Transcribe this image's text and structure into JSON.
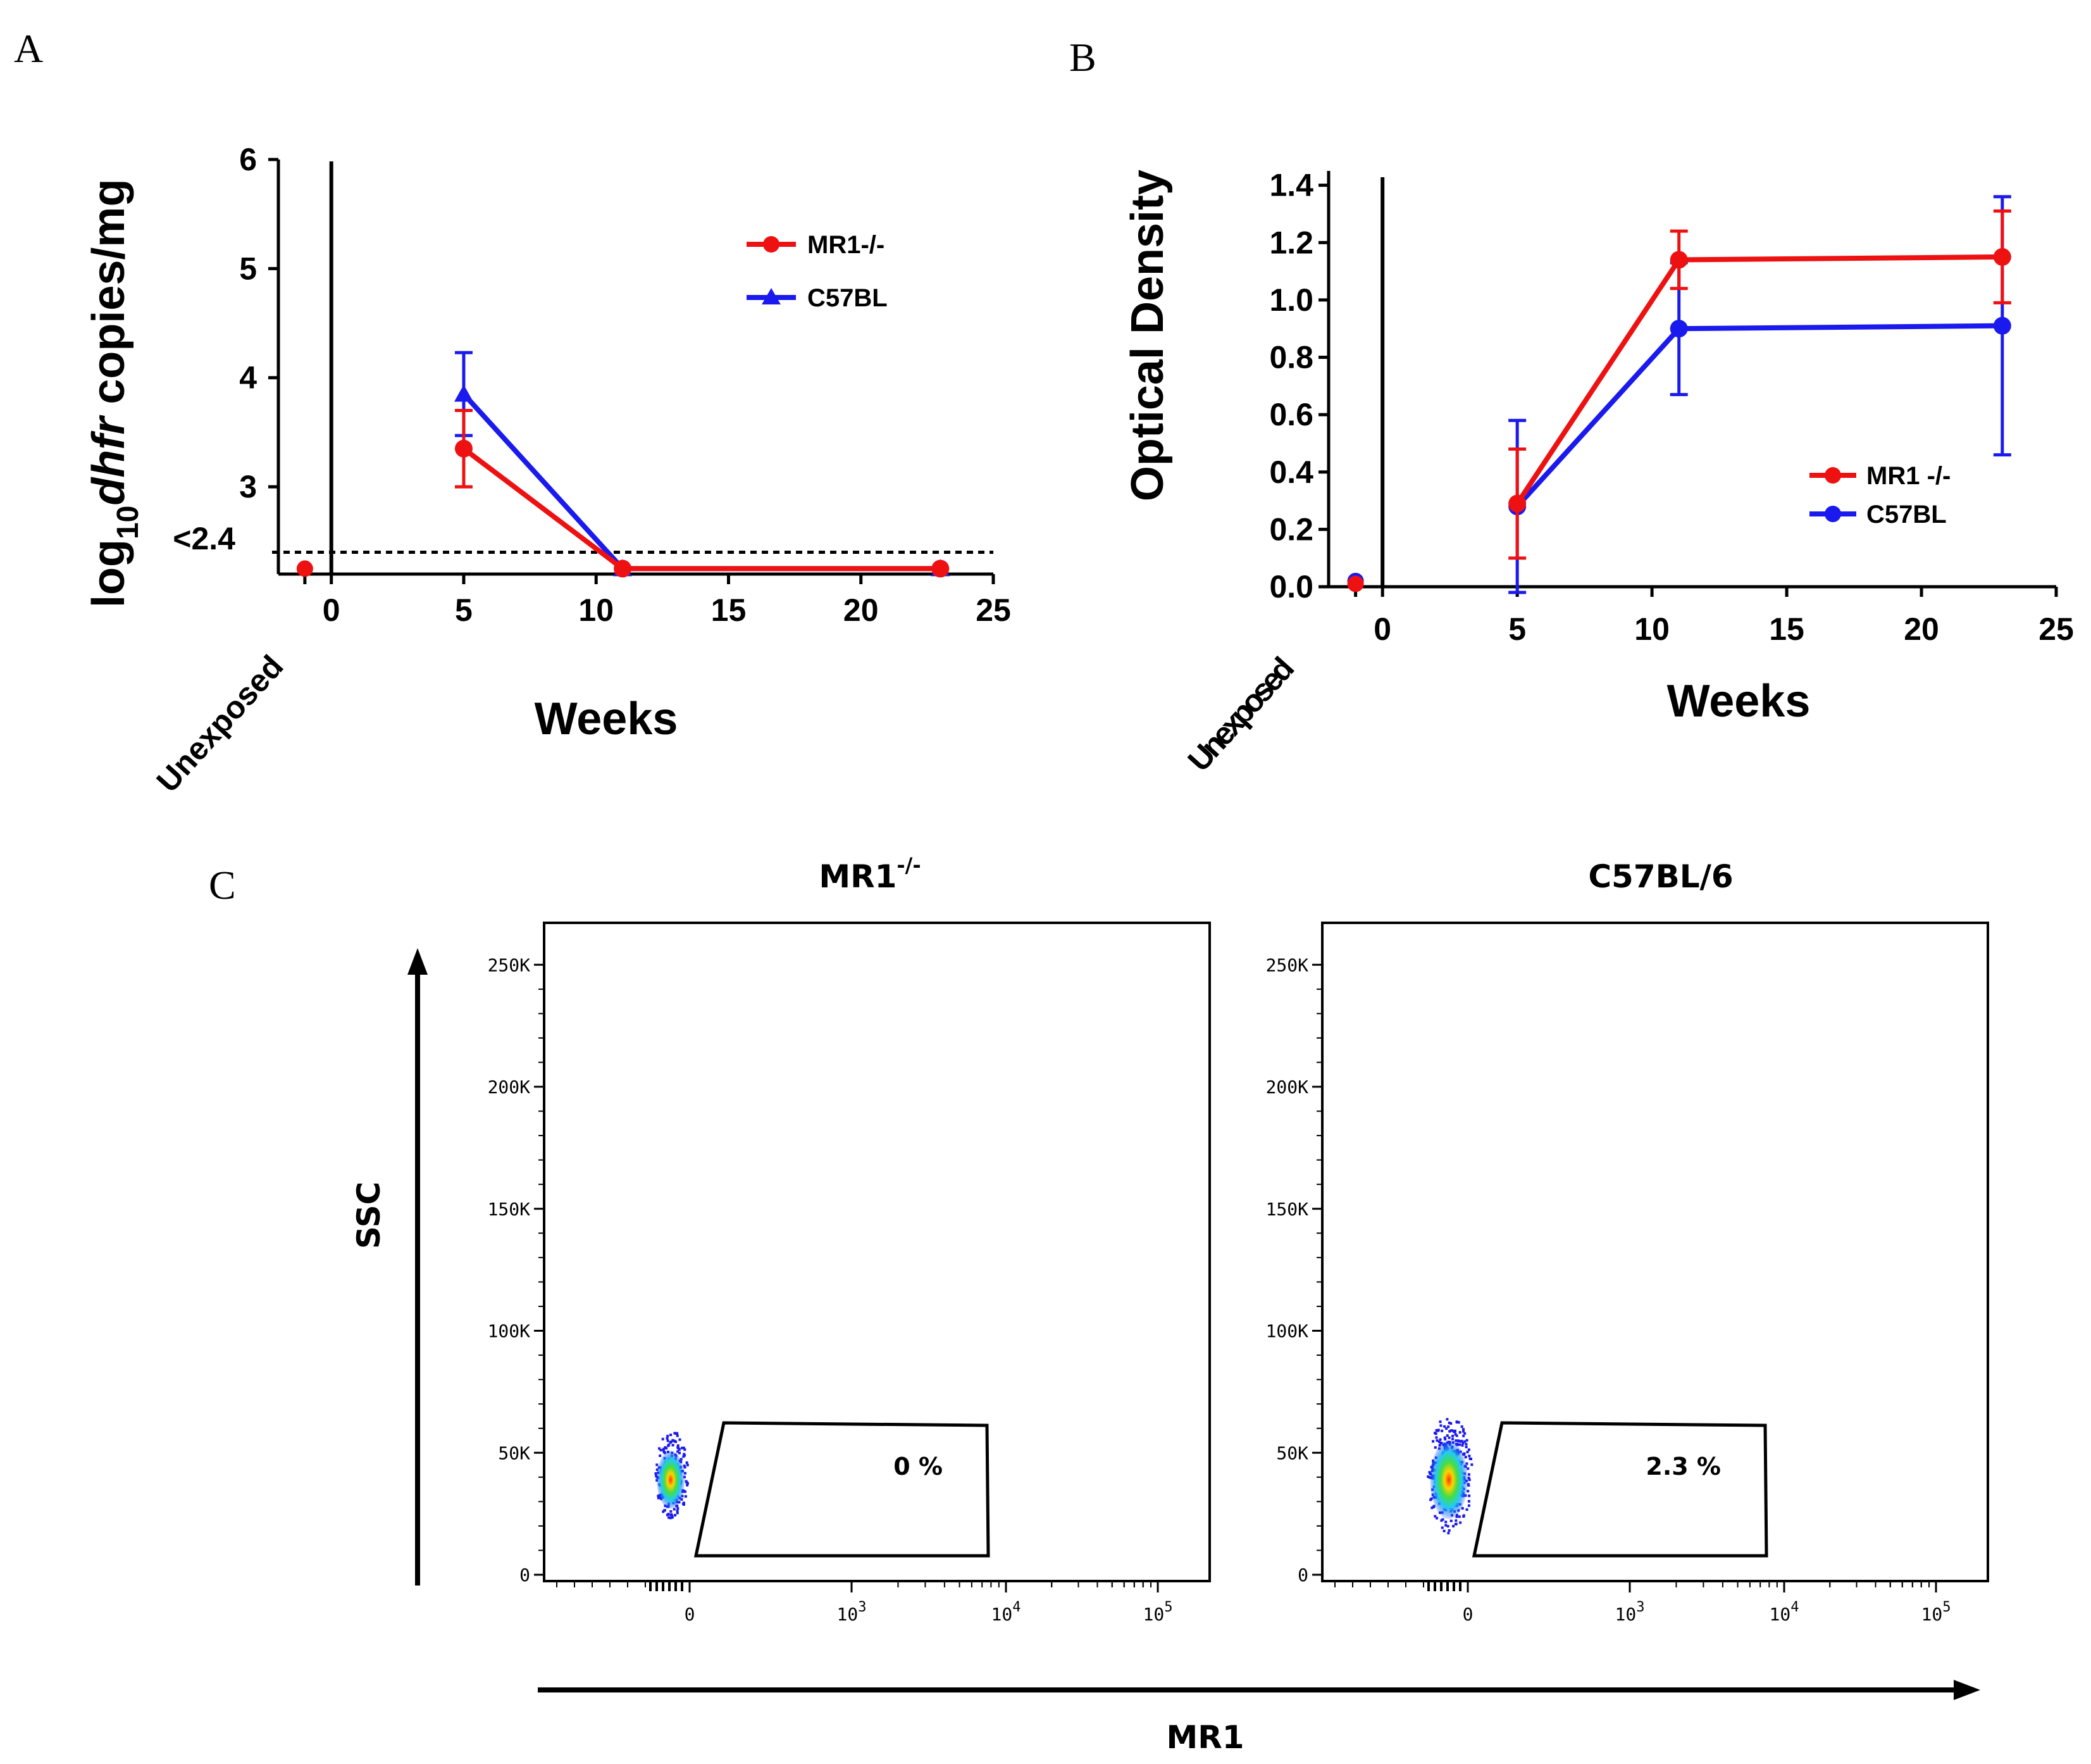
{
  "panel_labels": {
    "a": "A",
    "b": "B",
    "c": "C"
  },
  "colors": {
    "mr1": "#ee1111",
    "c57": "#1a1aee",
    "axis": "#000000"
  },
  "chart_data": [
    {
      "type": "line",
      "panel": "A",
      "ylabel_prefix": "log",
      "ylabel_sub": "10",
      "ylabel_italic": "dhfr",
      "ylabel_suffix": " copies/mg",
      "xlabel": "Weeks",
      "xlim": [
        -2,
        25
      ],
      "ylim": [
        2.2,
        6
      ],
      "yticks": [
        "6",
        "5",
        "4",
        "3"
      ],
      "ytick_values": [
        6,
        5,
        4,
        3
      ],
      "xticks": [
        "0",
        "5",
        "10",
        "15",
        "20",
        "25"
      ],
      "xtick_values": [
        0,
        5,
        10,
        15,
        20,
        25
      ],
      "unexposed_label": "Unexposed",
      "detection_limit_label": "<2.4",
      "detection_limit": 2.4,
      "series": [
        {
          "name": "MR1-/-",
          "marker": "circle",
          "color": "#ee1111",
          "x": [
            5,
            11,
            23
          ],
          "y": [
            3.35,
            2.25,
            2.25
          ],
          "err": [
            0.35,
            0,
            0
          ],
          "unexposed": 2.25
        },
        {
          "name": "C57BL",
          "marker": "triangle",
          "color": "#1a1aee",
          "x": [
            5,
            11,
            23
          ],
          "y": [
            3.85,
            2.25,
            2.25
          ],
          "err": [
            0.38,
            0,
            0
          ]
        }
      ]
    },
    {
      "type": "line",
      "panel": "B",
      "ylabel": "Optical Density",
      "xlabel": "Weeks",
      "xlim": [
        -2,
        25
      ],
      "ylim": [
        0,
        1.45
      ],
      "yticks": [
        "1.4",
        "1.2",
        "1.0",
        "0.8",
        "0.6",
        "0.4",
        "0.2",
        "0.0"
      ],
      "ytick_values": [
        1.4,
        1.2,
        1.0,
        0.8,
        0.6,
        0.4,
        0.2,
        0.0
      ],
      "xticks": [
        "0",
        "5",
        "10",
        "15",
        "20",
        "25"
      ],
      "xtick_values": [
        0,
        5,
        10,
        15,
        20,
        25
      ],
      "unexposed_label": "Unexposed",
      "series": [
        {
          "name": "MR1 -/-",
          "marker": "circle",
          "color": "#ee1111",
          "x": [
            5,
            11,
            23
          ],
          "y": [
            0.29,
            1.14,
            1.15
          ],
          "err": [
            0.19,
            0.1,
            0.16
          ],
          "unexposed": 0.01
        },
        {
          "name": "C57BL",
          "marker": "circle",
          "color": "#1a1aee",
          "x": [
            5,
            11,
            23
          ],
          "y": [
            0.28,
            0.9,
            0.91
          ],
          "err": [
            0.3,
            0.23,
            0.45
          ],
          "unexposed": 0.02
        }
      ]
    },
    {
      "type": "scatter",
      "panel": "C",
      "ylabel": "SSC",
      "xlabel": "MR1",
      "yticks": [
        "250K",
        "200K",
        "150K",
        "100K",
        "50K",
        "0"
      ],
      "ytick_values": [
        250000,
        200000,
        150000,
        100000,
        50000,
        0
      ],
      "xticks": [
        {
          "base": "0",
          "exp": ""
        },
        {
          "base": "10",
          "exp": "3"
        },
        {
          "base": "10",
          "exp": "4"
        },
        {
          "base": "10",
          "exp": "5"
        }
      ],
      "plots": [
        {
          "title_main": "MR1",
          "title_sup": "-/-",
          "gate_percent": "0 %"
        },
        {
          "title_main": "C57BL/6",
          "title_sup": "",
          "gate_percent": "2.3 %"
        }
      ]
    }
  ]
}
